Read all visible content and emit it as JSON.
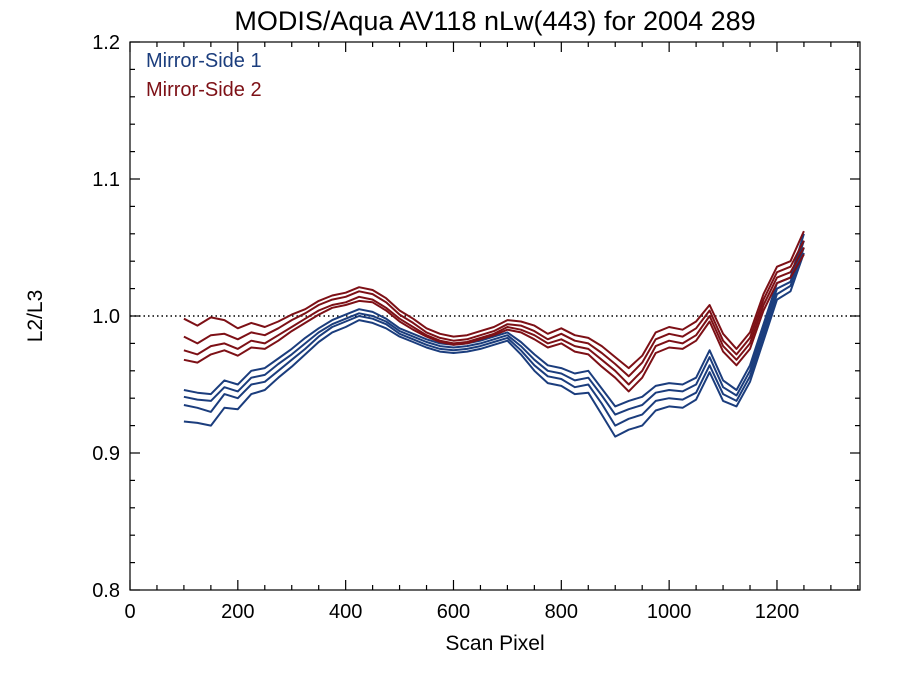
{
  "chart_data": {
    "type": "line",
    "title": "MODIS/Aqua AV118 nLw(443) for 2004 289",
    "xlabel": "Scan Pixel",
    "ylabel": "L2/L3",
    "xlim": [
      0,
      1354
    ],
    "ylim": [
      0.8,
      1.2
    ],
    "x_ticks": [
      0,
      200,
      400,
      600,
      800,
      1000,
      1200
    ],
    "y_ticks": [
      0.8,
      0.9,
      1.0,
      1.1,
      1.2
    ],
    "y_tick_labels": [
      "0.8",
      "0.9",
      "1.0",
      "1.1",
      "1.2"
    ],
    "reference_line": 1.0,
    "grid": false,
    "legend_position": "top-left",
    "legend": [
      {
        "label": "Mirror-Side 1",
        "color": "#1b3d7d"
      },
      {
        "label": "Mirror-Side 2",
        "color": "#7d1016"
      }
    ],
    "x": [
      100,
      125,
      150,
      175,
      200,
      225,
      250,
      275,
      300,
      325,
      350,
      375,
      400,
      425,
      450,
      475,
      500,
      525,
      550,
      575,
      600,
      625,
      650,
      675,
      700,
      725,
      750,
      775,
      800,
      825,
      850,
      875,
      900,
      925,
      950,
      975,
      1000,
      1025,
      1050,
      1075,
      1100,
      1125,
      1150,
      1175,
      1200,
      1225,
      1250
    ],
    "series": [
      {
        "group": "Mirror-Side 1",
        "color": "#1b3d7d",
        "values": [
          0.941,
          0.939,
          0.938,
          0.948,
          0.945,
          0.955,
          0.957,
          0.965,
          0.972,
          0.98,
          0.988,
          0.994,
          0.998,
          1.002,
          1.0,
          0.996,
          0.989,
          0.985,
          0.981,
          0.978,
          0.977,
          0.978,
          0.98,
          0.983,
          0.986,
          0.978,
          0.968,
          0.96,
          0.958,
          0.953,
          0.955,
          0.942,
          0.928,
          0.932,
          0.935,
          0.944,
          0.946,
          0.945,
          0.95,
          0.97,
          0.948,
          0.942,
          0.96,
          0.99,
          1.02,
          1.025,
          1.055
        ]
      },
      {
        "group": "Mirror-Side 1",
        "color": "#1b3d7d",
        "values": [
          0.935,
          0.933,
          0.93,
          0.943,
          0.94,
          0.95,
          0.952,
          0.96,
          0.968,
          0.976,
          0.985,
          0.992,
          0.996,
          1.0,
          0.998,
          0.994,
          0.987,
          0.983,
          0.979,
          0.976,
          0.975,
          0.976,
          0.978,
          0.981,
          0.984,
          0.975,
          0.964,
          0.956,
          0.954,
          0.948,
          0.95,
          0.936,
          0.92,
          0.925,
          0.928,
          0.938,
          0.94,
          0.939,
          0.944,
          0.964,
          0.943,
          0.938,
          0.956,
          0.986,
          1.016,
          1.022,
          1.05
        ]
      },
      {
        "group": "Mirror-Side 1",
        "color": "#1b3d7d",
        "values": [
          0.923,
          0.922,
          0.92,
          0.933,
          0.932,
          0.943,
          0.946,
          0.955,
          0.963,
          0.972,
          0.981,
          0.988,
          0.992,
          0.997,
          0.995,
          0.991,
          0.985,
          0.981,
          0.977,
          0.974,
          0.973,
          0.974,
          0.976,
          0.979,
          0.982,
          0.972,
          0.96,
          0.951,
          0.949,
          0.943,
          0.944,
          0.928,
          0.912,
          0.917,
          0.92,
          0.931,
          0.934,
          0.933,
          0.939,
          0.959,
          0.938,
          0.934,
          0.952,
          0.982,
          1.012,
          1.018,
          1.046
        ]
      },
      {
        "group": "Mirror-Side 1",
        "color": "#1b3d7d",
        "values": [
          0.946,
          0.944,
          0.943,
          0.953,
          0.95,
          0.96,
          0.962,
          0.969,
          0.976,
          0.984,
          0.991,
          0.997,
          1.001,
          1.005,
          1.003,
          0.998,
          0.991,
          0.987,
          0.983,
          0.98,
          0.979,
          0.98,
          0.982,
          0.985,
          0.988,
          0.981,
          0.972,
          0.964,
          0.962,
          0.958,
          0.96,
          0.947,
          0.934,
          0.938,
          0.941,
          0.949,
          0.951,
          0.95,
          0.955,
          0.975,
          0.953,
          0.946,
          0.964,
          0.994,
          1.024,
          1.028,
          1.06
        ]
      },
      {
        "group": "Mirror-Side 2",
        "color": "#7d1016",
        "values": [
          0.975,
          0.972,
          0.978,
          0.98,
          0.976,
          0.982,
          0.98,
          0.986,
          0.992,
          0.998,
          1.004,
          1.008,
          1.01,
          1.014,
          1.012,
          1.006,
          0.998,
          0.992,
          0.986,
          0.982,
          0.98,
          0.981,
          0.984,
          0.987,
          0.992,
          0.99,
          0.986,
          0.98,
          0.983,
          0.978,
          0.976,
          0.968,
          0.96,
          0.95,
          0.96,
          0.978,
          0.982,
          0.98,
          0.986,
          1.0,
          0.978,
          0.968,
          0.98,
          1.008,
          1.028,
          1.032,
          1.05
        ]
      },
      {
        "group": "Mirror-Side 2",
        "color": "#7d1016",
        "values": [
          0.968,
          0.966,
          0.972,
          0.975,
          0.971,
          0.977,
          0.976,
          0.982,
          0.989,
          0.995,
          1.001,
          1.006,
          1.008,
          1.011,
          1.01,
          1.004,
          0.996,
          0.99,
          0.985,
          0.981,
          0.979,
          0.98,
          0.983,
          0.986,
          0.99,
          0.988,
          0.983,
          0.977,
          0.98,
          0.974,
          0.972,
          0.963,
          0.955,
          0.945,
          0.955,
          0.973,
          0.977,
          0.976,
          0.982,
          0.996,
          0.974,
          0.964,
          0.976,
          1.004,
          1.024,
          1.028,
          1.045
        ]
      },
      {
        "group": "Mirror-Side 2",
        "color": "#7d1016",
        "values": [
          0.985,
          0.98,
          0.986,
          0.987,
          0.983,
          0.988,
          0.986,
          0.991,
          0.997,
          1.002,
          1.008,
          1.012,
          1.014,
          1.018,
          1.016,
          1.01,
          1.001,
          0.995,
          0.988,
          0.984,
          0.982,
          0.983,
          0.986,
          0.989,
          0.994,
          0.993,
          0.989,
          0.983,
          0.987,
          0.982,
          0.98,
          0.973,
          0.965,
          0.956,
          0.966,
          0.983,
          0.987,
          0.985,
          0.991,
          1.004,
          0.982,
          0.972,
          0.984,
          1.012,
          1.032,
          1.036,
          1.055
        ]
      },
      {
        "group": "Mirror-Side 2",
        "color": "#7d1016",
        "values": [
          0.998,
          0.993,
          0.999,
          0.997,
          0.991,
          0.995,
          0.992,
          0.996,
          1.001,
          1.005,
          1.011,
          1.015,
          1.017,
          1.021,
          1.019,
          1.013,
          1.004,
          0.998,
          0.991,
          0.987,
          0.985,
          0.986,
          0.989,
          0.992,
          0.997,
          0.996,
          0.993,
          0.987,
          0.991,
          0.986,
          0.984,
          0.978,
          0.97,
          0.962,
          0.971,
          0.988,
          0.992,
          0.99,
          0.996,
          1.008,
          0.987,
          0.976,
          0.988,
          1.016,
          1.036,
          1.04,
          1.062
        ]
      }
    ]
  }
}
